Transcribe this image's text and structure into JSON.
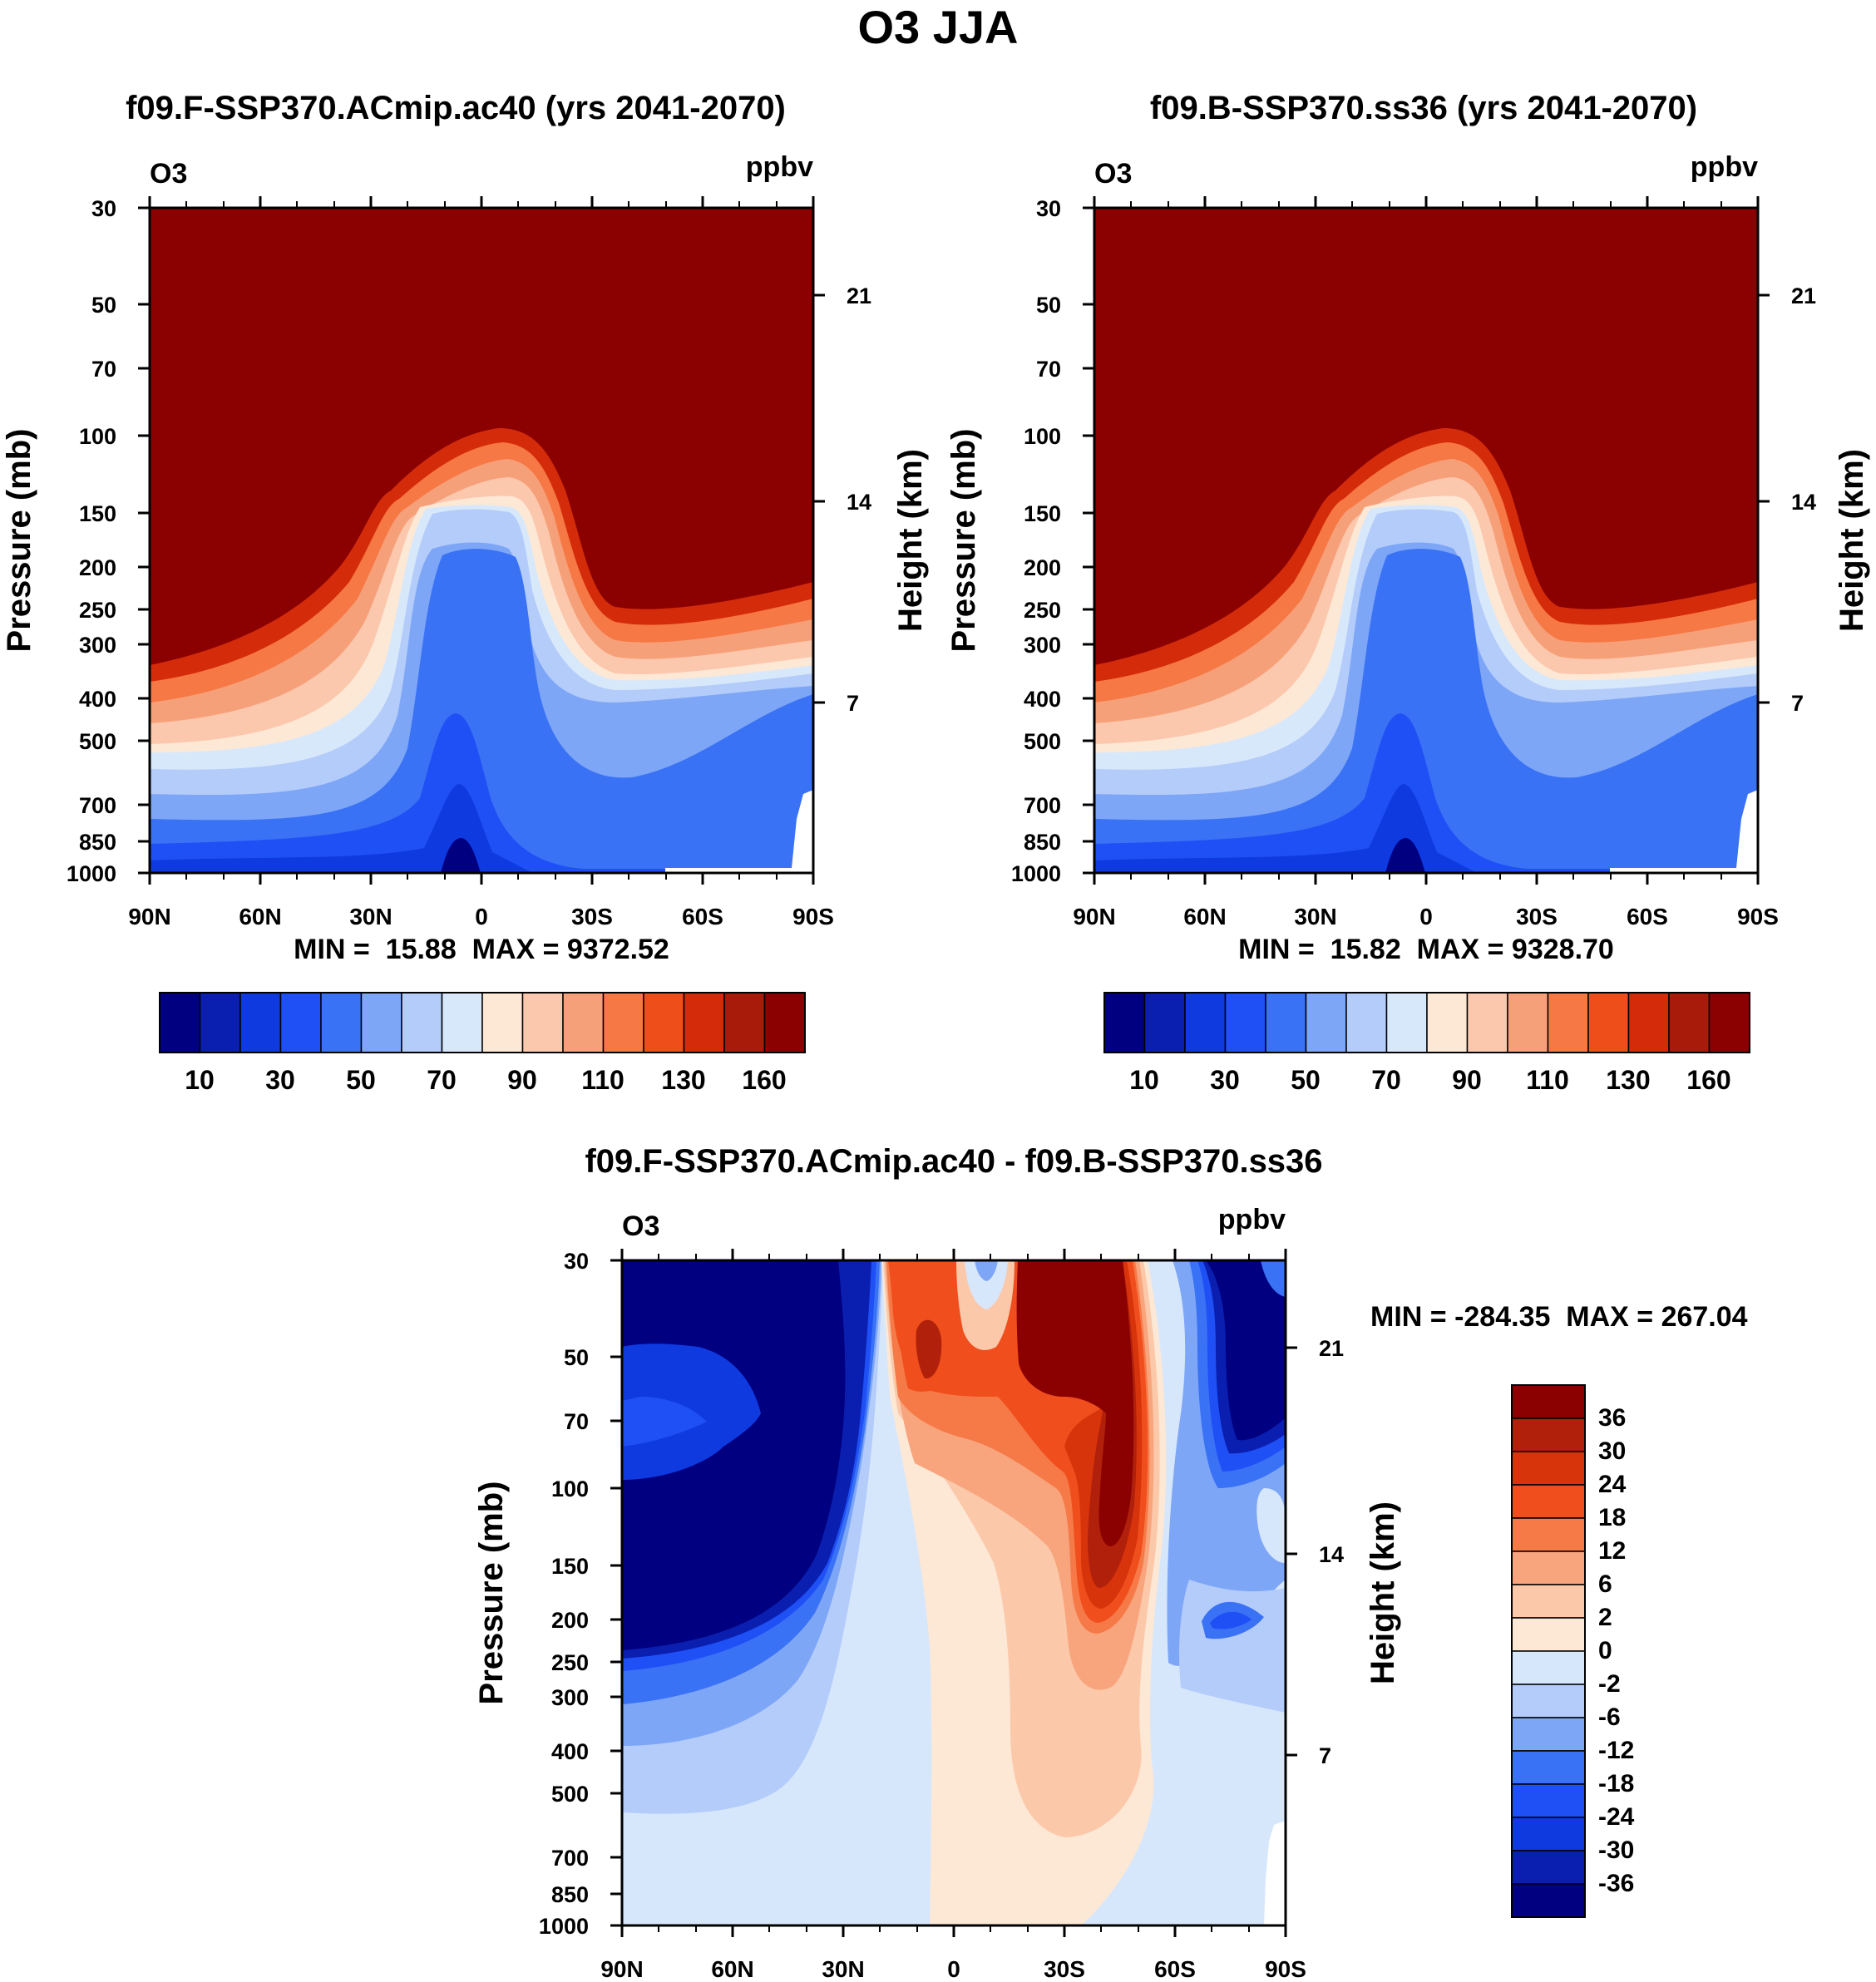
{
  "figure": {
    "title": "O3 JJA"
  },
  "chart_data": [
    {
      "type": "heatmap",
      "title": "f09.F-SSP370.ACmip.ac40 (yrs 2041-2070)",
      "variable": "O3",
      "units": "ppbv",
      "ylabel": "Pressure (mb)",
      "ylabel_right": "Height (km)",
      "xticks": [
        "90N",
        "60N",
        "30N",
        "0",
        "30S",
        "60S",
        "90S"
      ],
      "yticks": [
        "30",
        "50",
        "70",
        "100",
        "150",
        "200",
        "250",
        "300",
        "400",
        "500",
        "700",
        "850",
        "1000"
      ],
      "yticks_right": [
        "21",
        "14",
        "7"
      ],
      "stats": "MIN =  15.88  MAX = 9372.52",
      "colorbar_labels": [
        "10",
        "30",
        "50",
        "70",
        "90",
        "110",
        "130",
        "160"
      ],
      "colors": [
        "#000080",
        "#0a1fb0",
        "#0e3ae0",
        "#1e50f5",
        "#3a72f5",
        "#7ea6f7",
        "#b4ccfa",
        "#d8e8fb",
        "#fde8d5",
        "#fbc8ad",
        "#f6a07a",
        "#f57845",
        "#ee4e1a",
        "#d42c0a",
        "#a81a0a",
        "#8b0000"
      ]
    },
    {
      "type": "heatmap",
      "title": "f09.B-SSP370.ss36 (yrs 2041-2070)",
      "variable": "O3",
      "units": "ppbv",
      "ylabel": "Pressure (mb)",
      "ylabel_right": "Height (km)",
      "xticks": [
        "90N",
        "60N",
        "30N",
        "0",
        "30S",
        "60S",
        "90S"
      ],
      "yticks": [
        "30",
        "50",
        "70",
        "100",
        "150",
        "200",
        "250",
        "300",
        "400",
        "500",
        "700",
        "850",
        "1000"
      ],
      "yticks_right": [
        "21",
        "14",
        "7"
      ],
      "stats": "MIN =  15.82  MAX = 9328.70",
      "colorbar_labels": [
        "10",
        "30",
        "50",
        "70",
        "90",
        "110",
        "130",
        "160"
      ],
      "colors": [
        "#000080",
        "#0a1fb0",
        "#0e3ae0",
        "#1e50f5",
        "#3a72f5",
        "#7ea6f7",
        "#b4ccfa",
        "#d8e8fb",
        "#fde8d5",
        "#fbc8ad",
        "#f6a07a",
        "#f57845",
        "#ee4e1a",
        "#d42c0a",
        "#a81a0a",
        "#8b0000"
      ]
    },
    {
      "type": "heatmap",
      "title": "f09.F-SSP370.ACmip.ac40 - f09.B-SSP370.ss36",
      "variable": "O3",
      "units": "ppbv",
      "ylabel": "Pressure (mb)",
      "ylabel_right": "Height (km)",
      "xticks": [
        "90N",
        "60N",
        "30N",
        "0",
        "30S",
        "60S",
        "90S"
      ],
      "yticks": [
        "30",
        "50",
        "70",
        "100",
        "150",
        "200",
        "250",
        "300",
        "400",
        "500",
        "700",
        "850",
        "1000"
      ],
      "yticks_right": [
        "21",
        "14",
        "7"
      ],
      "stats": "MIN = -284.35  MAX = 267.04",
      "colorbar_labels": [
        "36",
        "30",
        "24",
        "18",
        "12",
        "6",
        "2",
        "0",
        "-2",
        "-6",
        "-12",
        "-18",
        "-24",
        "-30",
        "-36"
      ],
      "colors": [
        "#8b0000",
        "#b0200a",
        "#d8340c",
        "#f04e1c",
        "#f57a48",
        "#f8a47c",
        "#fbc8aa",
        "#fde8d5",
        "#d7e7fb",
        "#b4ccfa",
        "#7ea6f7",
        "#3a72f5",
        "#1e50f5",
        "#0e3ae0",
        "#0a1fb0",
        "#000080"
      ]
    }
  ]
}
